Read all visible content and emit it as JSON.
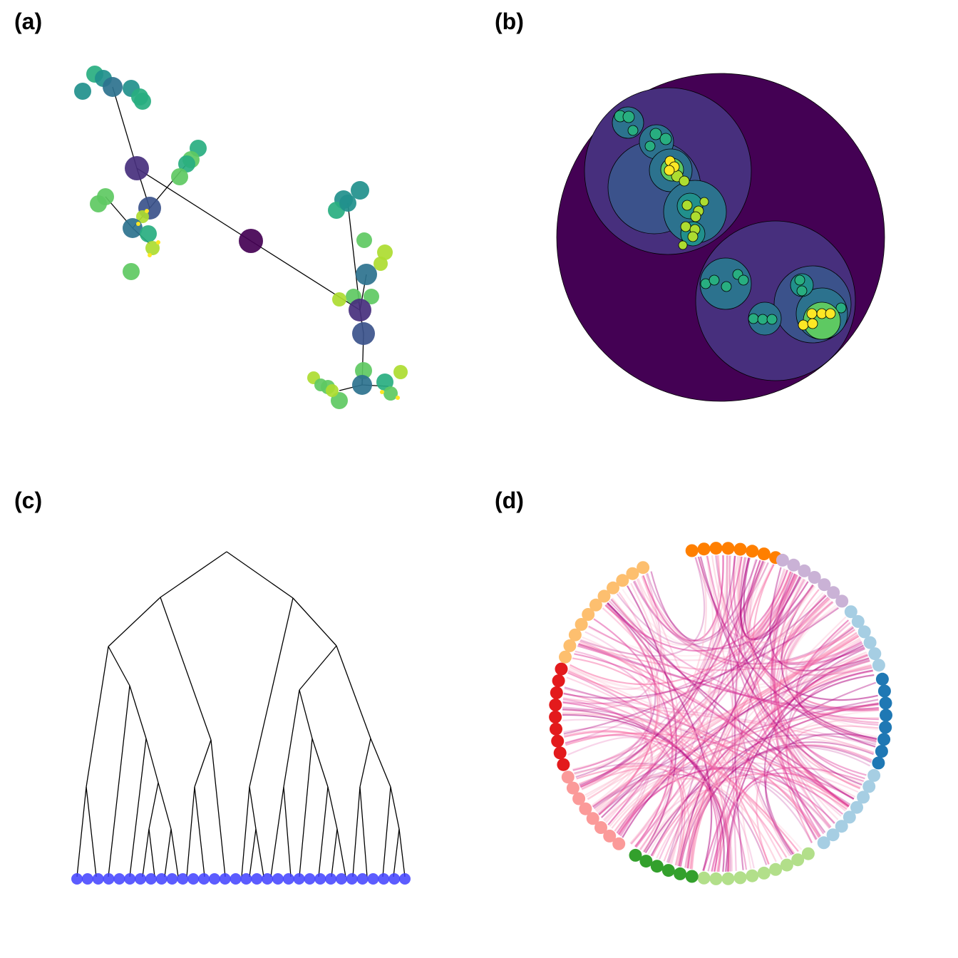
{
  "panels": [
    {
      "label": "(a)",
      "type": "force-directed network"
    },
    {
      "label": "(b)",
      "type": "circle packing"
    },
    {
      "label": "(c)",
      "type": "dendrogram"
    },
    {
      "label": "(d)",
      "type": "hierarchical edge bundling"
    }
  ],
  "colors": {
    "viridis": [
      "#440154",
      "#472f7d",
      "#3b528b",
      "#2c728e",
      "#21908c",
      "#28ae80",
      "#5ec962",
      "#addc30",
      "#fde725"
    ],
    "leaf_node": "#4040ff",
    "tree_edge": "#000000",
    "edge_bundle": [
      "#dd3497",
      "#ae017e",
      "#fbb4c9",
      "#f768a1"
    ],
    "ring_groups": [
      "#ff7f00",
      "#cab2d6",
      "#a6cee3",
      "#1f78b4",
      "#a6cee3",
      "#b2df8a",
      "#33a02c",
      "#fb9a99",
      "#e31a1c",
      "#fdbf6f"
    ]
  }
}
